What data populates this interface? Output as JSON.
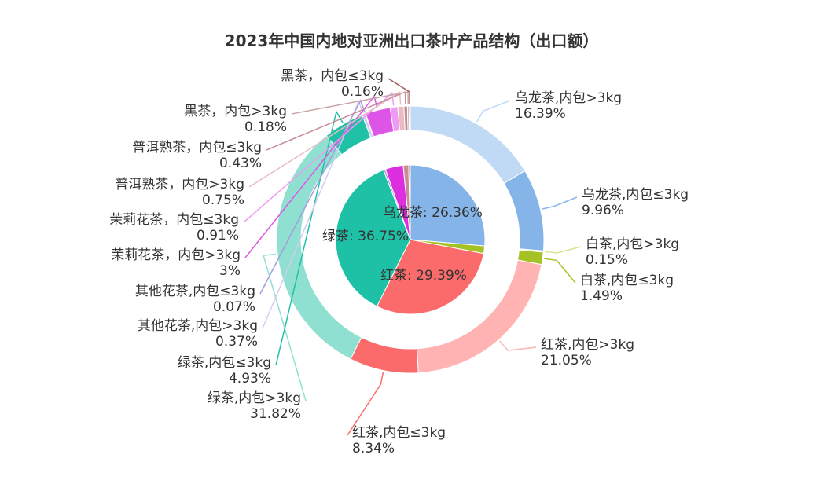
{
  "chart_data": {
    "type": "pie",
    "title": "2023年中国内地对亚洲出口茶叶产品结构（出口额）",
    "inner": [
      {
        "name": "乌龙茶",
        "value": 26.36,
        "label": "乌龙茶: 26.36%",
        "color": "#85b5e8"
      },
      {
        "name": "白茶",
        "value": 1.64,
        "label": "",
        "color": "#a5c224"
      },
      {
        "name": "红茶",
        "value": 29.39,
        "label": "红茶: 29.39%",
        "color": "#fc6b6b"
      },
      {
        "name": "绿茶",
        "value": 36.75,
        "label": "绿茶: 36.75%",
        "color": "#1fc1a6"
      },
      {
        "name": "其他花茶",
        "value": 0.44,
        "label": "",
        "color": "#a59be0"
      },
      {
        "name": "茉莉花茶",
        "value": 3.91,
        "label": "",
        "color": "#dd2fe0"
      },
      {
        "name": "普洱熟茶",
        "value": 1.18,
        "label": "",
        "color": "#c98c95"
      },
      {
        "name": "黑茶",
        "value": 0.34,
        "label": "",
        "color": "#a05a5a"
      }
    ],
    "outer": [
      {
        "line1": "乌龙茶,内包>3kg",
        "line2": "16.39%",
        "value": 16.39,
        "color": "#c0d9f5"
      },
      {
        "line1": "乌龙茶,内包≤3kg",
        "line2": "9.96%",
        "value": 9.96,
        "color": "#85b5e8"
      },
      {
        "line1": "白茶,内包>3kg",
        "line2": "0.15%",
        "value": 0.15,
        "color": "#d6e58e"
      },
      {
        "line1": "白茶,内包≤3kg",
        "line2": "1.49%",
        "value": 1.49,
        "color": "#a5c224"
      },
      {
        "line1": "红茶,内包>3kg",
        "line2": "21.05%",
        "value": 21.05,
        "color": "#ffb3b3"
      },
      {
        "line1": "红茶,内包≤3kg",
        "line2": "8.34%",
        "value": 8.34,
        "color": "#fc6b6b"
      },
      {
        "line1": "绿茶,内包>3kg",
        "line2": "31.82%",
        "value": 31.82,
        "color": "#8fe0d0"
      },
      {
        "line1": "绿茶,内包≤3kg",
        "line2": "4.93%",
        "value": 4.93,
        "color": "#1fc1a6"
      },
      {
        "line1": "其他花茶,内包>3kg",
        "line2": "0.37%",
        "value": 0.37,
        "color": "#d2ccf0"
      },
      {
        "line1": "其他花茶,内包≤3kg",
        "line2": "0.07%",
        "value": 0.07,
        "color": "#a59be0"
      },
      {
        "line1": "茉莉花茶，内包>3kg",
        "line2": "3%",
        "value": 3.0,
        "color": "#dd55e6"
      },
      {
        "line1": "茉莉花茶，内包≤3kg",
        "line2": "0.91%",
        "value": 0.91,
        "color": "#ef9af3"
      },
      {
        "line1": "普洱熟茶，内包>3kg",
        "line2": "0.75%",
        "value": 0.75,
        "color": "#e8bcc4"
      },
      {
        "line1": "普洱熟茶，内包≤3kg",
        "line2": "0.43%",
        "value": 0.43,
        "color": "#c98c95"
      },
      {
        "line1": "黑茶，内包>3kg",
        "line2": "0.18%",
        "value": 0.18,
        "color": "#c9a6a6"
      },
      {
        "line1": "黑茶，内包≤3kg",
        "line2": "0.16%",
        "value": 0.16,
        "color": "#a05a5a"
      }
    ]
  }
}
